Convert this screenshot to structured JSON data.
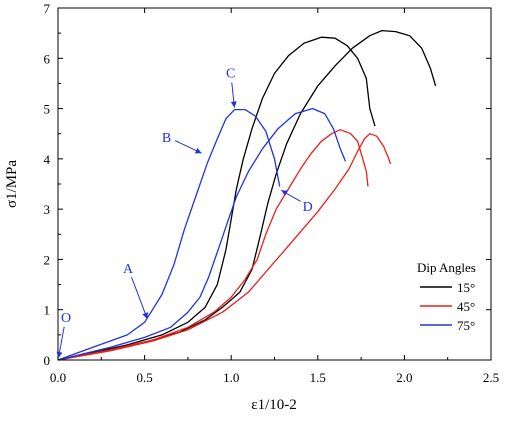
{
  "chart_data": {
    "type": "line",
    "xlabel": "ε1/10-2",
    "ylabel": "σ1/MPa",
    "xlim": [
      0,
      2.5
    ],
    "ylim": [
      0,
      7
    ],
    "x_ticks": [
      "0.0",
      "0.5",
      "1.0",
      "1.5",
      "2.0",
      "2.5"
    ],
    "y_ticks": [
      "0",
      "1",
      "2",
      "3",
      "4",
      "5",
      "6",
      "7"
    ],
    "legend": {
      "title": "Dip Angles",
      "placement": "right",
      "entries": [
        "15°",
        "45°",
        "75°"
      ]
    },
    "colors": {
      "15°": "#000000",
      "45°": "#e8201a",
      "75°": "#2233dd"
    },
    "series": [
      {
        "name": "15°",
        "curves": [
          [
            [
              0,
              0
            ],
            [
              0.2,
              0.15
            ],
            [
              0.4,
              0.3
            ],
            [
              0.6,
              0.5
            ],
            [
              0.75,
              0.75
            ],
            [
              0.85,
              1.05
            ],
            [
              0.92,
              1.5
            ],
            [
              0.97,
              2.2
            ],
            [
              1.0,
              2.8
            ],
            [
              1.03,
              3.4
            ],
            [
              1.07,
              4.0
            ],
            [
              1.12,
              4.6
            ],
            [
              1.18,
              5.2
            ],
            [
              1.25,
              5.7
            ],
            [
              1.33,
              6.05
            ],
            [
              1.42,
              6.3
            ],
            [
              1.52,
              6.42
            ],
            [
              1.6,
              6.4
            ],
            [
              1.67,
              6.25
            ],
            [
              1.73,
              6.0
            ],
            [
              1.78,
              5.6
            ],
            [
              1.8,
              5.0
            ],
            [
              1.83,
              4.65
            ]
          ],
          [
            [
              0,
              0
            ],
            [
              0.3,
              0.2
            ],
            [
              0.5,
              0.35
            ],
            [
              0.7,
              0.55
            ],
            [
              0.85,
              0.8
            ],
            [
              0.95,
              1.05
            ],
            [
              1.05,
              1.35
            ],
            [
              1.12,
              1.8
            ],
            [
              1.17,
              2.5
            ],
            [
              1.21,
              3.1
            ],
            [
              1.26,
              3.7
            ],
            [
              1.32,
              4.3
            ],
            [
              1.4,
              4.9
            ],
            [
              1.5,
              5.45
            ],
            [
              1.6,
              5.85
            ],
            [
              1.7,
              6.2
            ],
            [
              1.8,
              6.45
            ],
            [
              1.87,
              6.55
            ],
            [
              1.95,
              6.53
            ],
            [
              2.03,
              6.45
            ],
            [
              2.1,
              6.2
            ],
            [
              2.15,
              5.8
            ],
            [
              2.18,
              5.45
            ]
          ]
        ]
      },
      {
        "name": "45°",
        "curves": [
          [
            [
              0,
              0
            ],
            [
              0.3,
              0.2
            ],
            [
              0.55,
              0.4
            ],
            [
              0.75,
              0.65
            ],
            [
              0.9,
              0.95
            ],
            [
              1.0,
              1.25
            ],
            [
              1.08,
              1.6
            ],
            [
              1.15,
              2.0
            ],
            [
              1.2,
              2.5
            ],
            [
              1.26,
              3.0
            ],
            [
              1.33,
              3.4
            ],
            [
              1.4,
              3.8
            ],
            [
              1.46,
              4.1
            ],
            [
              1.52,
              4.35
            ],
            [
              1.58,
              4.5
            ],
            [
              1.63,
              4.58
            ],
            [
              1.69,
              4.5
            ],
            [
              1.73,
              4.35
            ],
            [
              1.76,
              4.0
            ],
            [
              1.78,
              3.75
            ],
            [
              1.79,
              3.45
            ]
          ],
          [
            [
              0,
              0
            ],
            [
              0.3,
              0.18
            ],
            [
              0.55,
              0.38
            ],
            [
              0.75,
              0.6
            ],
            [
              0.95,
              0.95
            ],
            [
              1.1,
              1.35
            ],
            [
              1.2,
              1.75
            ],
            [
              1.3,
              2.15
            ],
            [
              1.4,
              2.55
            ],
            [
              1.5,
              2.95
            ],
            [
              1.6,
              3.4
            ],
            [
              1.68,
              3.8
            ],
            [
              1.73,
              4.15
            ],
            [
              1.77,
              4.4
            ],
            [
              1.8,
              4.5
            ],
            [
              1.84,
              4.45
            ],
            [
              1.88,
              4.25
            ],
            [
              1.91,
              4.0
            ],
            [
              1.92,
              3.9
            ]
          ]
        ]
      },
      {
        "name": "75°",
        "curves": [
          [
            [
              0,
              0
            ],
            [
              0.2,
              0.25
            ],
            [
              0.4,
              0.5
            ],
            [
              0.5,
              0.75
            ],
            [
              0.6,
              1.3
            ],
            [
              0.67,
              1.9
            ],
            [
              0.73,
              2.6
            ],
            [
              0.8,
              3.3
            ],
            [
              0.86,
              3.9
            ],
            [
              0.92,
              4.4
            ],
            [
              0.97,
              4.8
            ],
            [
              1.02,
              4.98
            ],
            [
              1.08,
              4.98
            ],
            [
              1.14,
              4.85
            ],
            [
              1.2,
              4.55
            ],
            [
              1.25,
              4.0
            ],
            [
              1.28,
              3.45
            ]
          ],
          [
            [
              0,
              0
            ],
            [
              0.3,
              0.25
            ],
            [
              0.5,
              0.45
            ],
            [
              0.65,
              0.65
            ],
            [
              0.75,
              0.95
            ],
            [
              0.82,
              1.25
            ],
            [
              0.87,
              1.65
            ],
            [
              0.93,
              2.25
            ],
            [
              0.98,
              2.75
            ],
            [
              1.03,
              3.25
            ],
            [
              1.1,
              3.75
            ],
            [
              1.18,
              4.2
            ],
            [
              1.27,
              4.6
            ],
            [
              1.37,
              4.9
            ],
            [
              1.47,
              5.0
            ],
            [
              1.54,
              4.9
            ],
            [
              1.59,
              4.6
            ],
            [
              1.63,
              4.2
            ],
            [
              1.66,
              3.95
            ]
          ]
        ]
      }
    ],
    "annotations": [
      {
        "label": "O",
        "at": [
          0.0,
          0.0
        ]
      },
      {
        "label": "A",
        "at": [
          0.52,
          0.78
        ]
      },
      {
        "label": "B",
        "at": [
          0.84,
          4.1
        ]
      },
      {
        "label": "C",
        "at": [
          1.02,
          4.98
        ]
      },
      {
        "label": "D",
        "at": [
          1.28,
          3.4
        ]
      }
    ]
  }
}
